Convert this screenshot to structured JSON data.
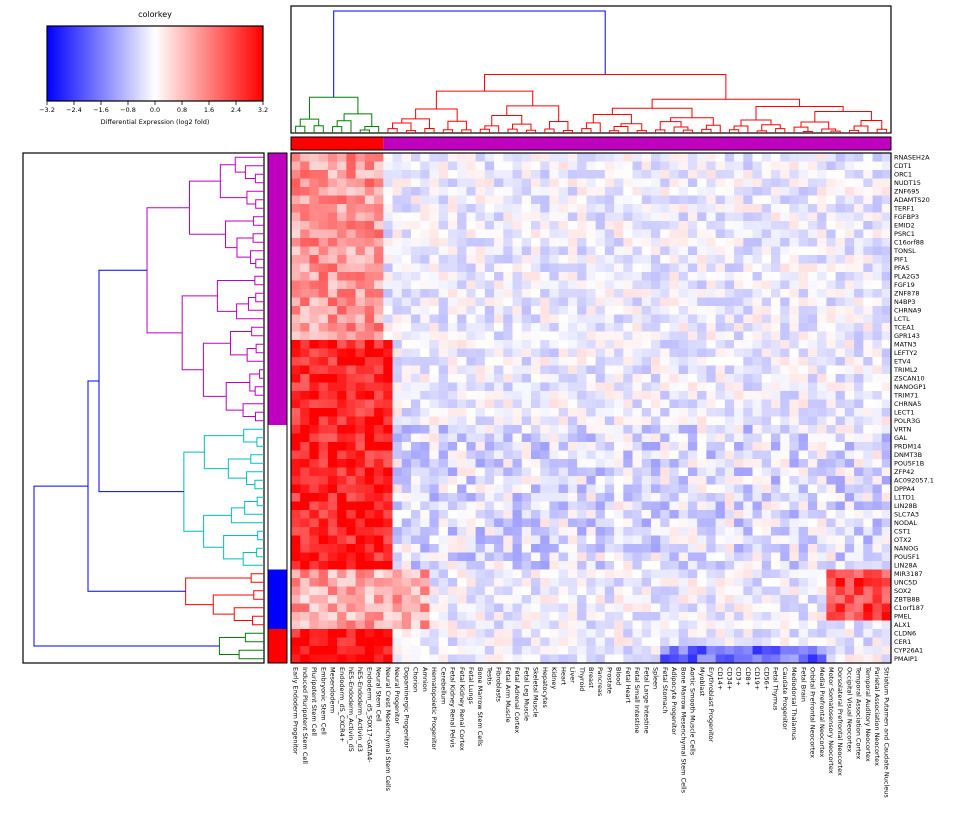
{
  "colorkey": {
    "title": "colorkey",
    "label": "Differential Expression (log2 fold)",
    "ticks": [
      "−3.2",
      "−2.4",
      "−1.6",
      "−0.8",
      "0.0",
      "0.8",
      "1.6",
      "2.4",
      "3.2"
    ],
    "colors": {
      "low": "#0000ff",
      "mid": "#ffffff",
      "high": "#ff0000"
    }
  },
  "chart_data": {
    "type": "heatmap",
    "value_range": [
      -3.2,
      3.2
    ],
    "rows": [
      "RNASEH2A",
      "CDT1",
      "ORC1",
      "NUDT15",
      "ZNF695",
      "ADAMTS20",
      "TERF1",
      "FGFBP3",
      "EMID2",
      "PSRC1",
      "C16orf88",
      "TONSL",
      "PIF1",
      "PFAS",
      "PLA2G3",
      "FGF19",
      "ZNF878",
      "N4BP3",
      "CHRNA9",
      "LCTL",
      "TCEA1",
      "GPR143",
      "MATN3",
      "LEFTY2",
      "ETV4",
      "TRIML2",
      "ZSCAN10",
      "NANOGP1",
      "TRIM71",
      "CHRNA5",
      "LECT1",
      "POLR3G",
      "VRTN",
      "GAL",
      "PRDM14",
      "DNMT3B",
      "POU5F1B",
      "ZFP42",
      "AC092057.1",
      "DPPA4",
      "L1TD1",
      "LIN28B",
      "SLC7A3",
      "NODAL",
      "CST1",
      "OTX2",
      "NANOG",
      "POU5F1",
      "LIN28A",
      "MIR3187",
      "UNC5D",
      "SOX2",
      "ZBTB8B",
      "C1orf187",
      "PMEL",
      "ALX1",
      "CLDN6",
      "CER1",
      "CYP26A1",
      "PMAIP1"
    ],
    "columns": [
      "Early Endoderm Progenitor",
      "Induced Pluripotent Stem Cell",
      "Pluripotent Stem Cell",
      "Embryonic Stem Cell",
      "Mesendoderm",
      "Endoderm_d5_CXCR4+",
      "hES-Endoderm_Activin_d5",
      "hES-Endoderm_Activin_d3",
      "Endoderm_d5_SOX17-GATA4-",
      "Neural Stem Cell",
      "Neural Crest Mesenchymal Stem Cells",
      "Neural Progenitor",
      "Dopaminergic Progenitor",
      "Chorion",
      "Amnion",
      "Hematopoietic Progenitor",
      "Cerebellum",
      "Fetal Kidney Renal Pelvis",
      "Fetal Kidney Renal Cortex",
      "Fetal Lungs",
      "Bone Marrow Stem Cells",
      "Testis",
      "Fibroblasts",
      "Fetal Arm Muscle",
      "Fetal Adrenal Cortex",
      "Fetal Leg Muscle",
      "Skeletal Muscle",
      "Hepatocytes",
      "Kidney",
      "Heart",
      "Liver",
      "Thyroid",
      "Breast",
      "Pancreas",
      "Prostate",
      "Blood",
      "Fetal Heart",
      "Fetal Small Intestine",
      "Fetal Large Intestine",
      "Spleen",
      "Fetal Stomach",
      "Adipocyte Progenitor",
      "Bone Marrow Mesenchymal Stem Cells",
      "Aortic Smooth Muscle Cells",
      "Myoblast",
      "Erythroblast Progenitor",
      "CD14+",
      "CD34+",
      "CD3+",
      "CD8+",
      "CD19+",
      "CD56+",
      "Fetal Thymus",
      "Caudate Progenitor",
      "Mediodorsal Thalamus",
      "Fetal Brain",
      "Orbital Prefrontal Neocortex",
      "Medial Prefrontal Neocortex",
      "Motor Somatosensory Neocortex",
      "Dorsolateral Prefrontal Neocortex",
      "Occipital Visual Neocortex",
      "Temporal Association Cortex",
      "Temporal Auditory Neocortex",
      "Parietal Association Neocortex",
      "Striatum Putamen and Caudate Nucleus"
    ],
    "row_clusters": [
      {
        "rows": [
          0,
          31
        ],
        "dendro_color": "#bf00bf",
        "bar_color": "#bf00bf"
      },
      {
        "rows": [
          32,
          48
        ],
        "dendro_color": "#00bfbf",
        "bar_color": "#ffffff"
      },
      {
        "rows": [
          49,
          55
        ],
        "dendro_color": "#ff0000",
        "bar_color": "#0000ff"
      },
      {
        "rows": [
          56,
          59
        ],
        "dendro_color": "#008000",
        "bar_color": "#ff0000"
      }
    ],
    "column_clusters": [
      {
        "columns": [
          0,
          9
        ],
        "dendro_color": "#008000",
        "bar_color": "#ff0000"
      },
      {
        "columns": [
          10,
          64
        ],
        "dendro_color": "#ff0000",
        "bar_color": "#bf00bf"
      }
    ],
    "root_link_color": "#0000ff",
    "blocks": [
      {
        "rows": [
          0,
          31
        ],
        "cols": [
          0,
          9
        ],
        "value": 1.3
      },
      {
        "rows": [
          22,
          48
        ],
        "cols": [
          0,
          10
        ],
        "value": 2.8
      },
      {
        "rows": [
          32,
          48
        ],
        "cols": [
          11,
          64
        ],
        "value": -0.4
      },
      {
        "rows": [
          49,
          55
        ],
        "cols": [
          0,
          14
        ],
        "value": 1.1
      },
      {
        "rows": [
          49,
          54
        ],
        "cols": [
          58,
          64
        ],
        "value": 2.4
      },
      {
        "rows": [
          56,
          59
        ],
        "cols": [
          0,
          10
        ],
        "value": 3.0
      },
      {
        "rows": [
          58,
          59
        ],
        "cols": [
          40,
          57
        ],
        "value": -1.8
      }
    ]
  }
}
